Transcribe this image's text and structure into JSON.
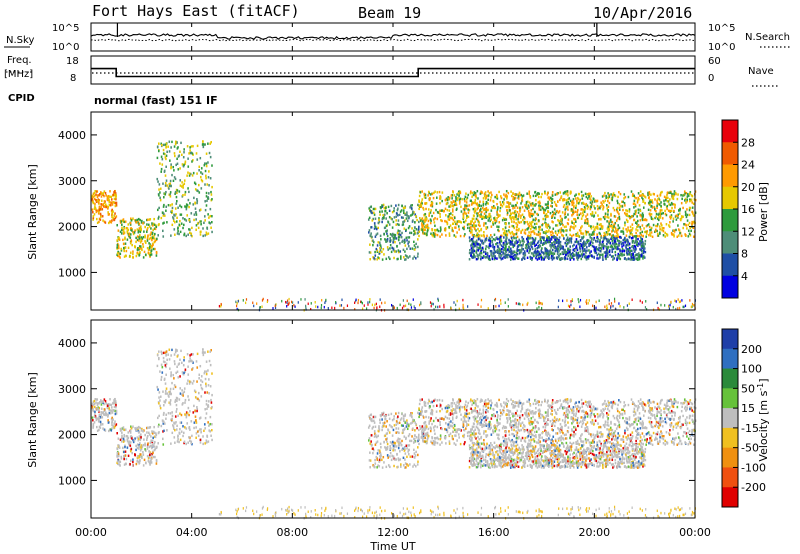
{
  "header": {
    "title": "Fort Hays East (fitACF)",
    "beam": "Beam 19",
    "date": "10/Apr/2016"
  },
  "noise_panel": {
    "left_label": "N.Sky",
    "right_label": "N.Search",
    "left_ticks": [
      "10^5",
      "10^0"
    ],
    "right_ticks": [
      "10^5",
      "10^0"
    ]
  },
  "freq_panel": {
    "left_label_line1": "Freq.",
    "left_label_line2": "[MHz]",
    "left_ticks": [
      "18",
      "8"
    ],
    "right_label": "Nave",
    "right_ticks": [
      "60",
      "0"
    ],
    "cpid_label": "CPID",
    "mode_text": "normal (fast) 151 IF",
    "freq_steps": [
      {
        "t": 0.0,
        "f": 14.2
      },
      {
        "t": 1.0,
        "f": 14.2
      },
      {
        "t": 1.0,
        "f": 11.4
      },
      {
        "t": 13.0,
        "f": 11.4
      },
      {
        "t": 13.0,
        "f": 14.2
      },
      {
        "t": 24.0,
        "f": 14.2
      }
    ]
  },
  "power_panel": {
    "ylabel": "Slant Range [km]",
    "colorbar_label": "Power [dB]",
    "colorbar_ticks": [
      "28",
      "24",
      "20",
      "16",
      "12",
      "8",
      "4"
    ],
    "colorbar_colors": [
      "#e8000b",
      "#f05a00",
      "#ff9a00",
      "#e6c800",
      "#2e9a3c",
      "#4e8d78",
      "#1f4fa5",
      "#0000e0"
    ]
  },
  "velocity_panel": {
    "ylabel": "Slant Range [km]",
    "colorbar_label": "Velocity [m s",
    "colorbar_label_sup": "-1",
    "colorbar_label_end": "]",
    "colorbar_ticks": [
      "200",
      "100",
      "50",
      "15",
      "-15",
      "-50",
      "-100",
      "-200"
    ],
    "colorbar_colors": [
      "#1f3fa8",
      "#2f6fc0",
      "#2a8a3a",
      "#66c23a",
      "#bebebe",
      "#f0c020",
      "#f09010",
      "#f05010",
      "#e00000"
    ]
  },
  "x_axis": {
    "label": "Time UT",
    "ticks": [
      "00:00",
      "04:00",
      "08:00",
      "12:00",
      "16:00",
      "20:00",
      "00:00"
    ]
  },
  "y_axis_ticks": [
    "4000",
    "3000",
    "2000",
    "1000"
  ],
  "chart_data": {
    "type": "heatmap",
    "x_range_hours": [
      0,
      24
    ],
    "y_range_km": [
      180,
      4500
    ],
    "echo_regions_power": [
      {
        "t0": 0.0,
        "t1": 1.0,
        "r_lo": 2100,
        "r_hi": 2800,
        "power_db": 22
      },
      {
        "t0": 1.0,
        "t1": 2.6,
        "r_lo": 1350,
        "r_hi": 2200,
        "power_db": 18
      },
      {
        "t0": 2.6,
        "t1": 4.8,
        "r_lo": 1800,
        "r_hi": 3900,
        "power_db": 14
      },
      {
        "t0": 11.0,
        "t1": 13.0,
        "r_lo": 1300,
        "r_hi": 2500,
        "power_db": 12
      },
      {
        "t0": 13.0,
        "t1": 24.0,
        "r_lo": 1800,
        "r_hi": 2800,
        "power_db": 18
      },
      {
        "t0": 15.0,
        "t1": 22.0,
        "r_lo": 1300,
        "r_hi": 1800,
        "power_db": 8
      }
    ]
  }
}
